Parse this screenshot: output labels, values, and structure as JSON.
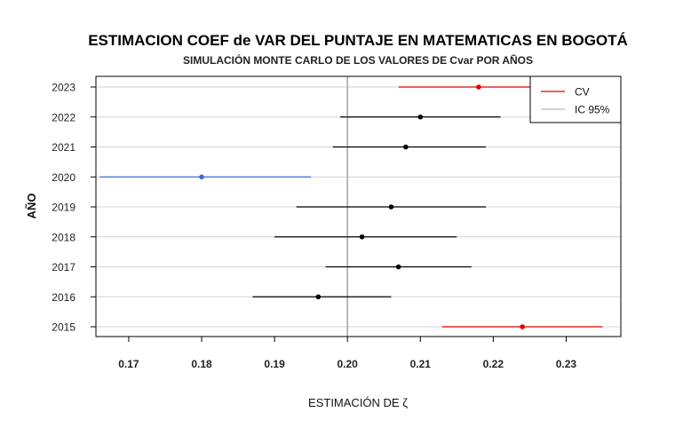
{
  "chart_data": {
    "type": "scatter",
    "title": "ESTIMACION COEF de VAR DEL PUNTAJE EN MATEMATICAS EN BOGOTÁ",
    "subtitle": "SIMULACIÓN MONTE CARLO DE LOS VALORES DE Cvar POR AÑOS",
    "xlabel": "ESTIMACIÓN DE ζ",
    "ylabel": "AÑO",
    "xlim": [
      0.1655,
      0.2375
    ],
    "x_ticks": [
      "0.17",
      "0.18",
      "0.19",
      "0.20",
      "0.21",
      "0.22",
      "0.23"
    ],
    "x_tick_values": [
      0.17,
      0.18,
      0.19,
      0.2,
      0.21,
      0.22,
      0.23
    ],
    "reference_line": 0.2,
    "grid": "horizontal",
    "legend": {
      "position": "top-right",
      "entries": [
        {
          "label": "CV",
          "color": "#dd0000"
        },
        {
          "label": "IC 95%",
          "color": "#bbbbbb"
        }
      ]
    },
    "points": [
      {
        "year": "2015",
        "estimate": 0.224,
        "ci_low": 0.213,
        "ci_high": 0.235,
        "color": "#dd0000"
      },
      {
        "year": "2016",
        "estimate": 0.196,
        "ci_low": 0.187,
        "ci_high": 0.206,
        "color": "#000000"
      },
      {
        "year": "2017",
        "estimate": 0.207,
        "ci_low": 0.197,
        "ci_high": 0.217,
        "color": "#000000"
      },
      {
        "year": "2018",
        "estimate": 0.202,
        "ci_low": 0.19,
        "ci_high": 0.215,
        "color": "#000000"
      },
      {
        "year": "2019",
        "estimate": 0.206,
        "ci_low": 0.193,
        "ci_high": 0.219,
        "color": "#000000"
      },
      {
        "year": "2020",
        "estimate": 0.18,
        "ci_low": 0.166,
        "ci_high": 0.195,
        "color": "#3a6fd8"
      },
      {
        "year": "2021",
        "estimate": 0.208,
        "ci_low": 0.198,
        "ci_high": 0.219,
        "color": "#000000"
      },
      {
        "year": "2022",
        "estimate": 0.21,
        "ci_low": 0.199,
        "ci_high": 0.221,
        "color": "#000000"
      },
      {
        "year": "2023",
        "estimate": 0.218,
        "ci_low": 0.207,
        "ci_high": 0.228,
        "color": "#dd0000"
      }
    ]
  }
}
